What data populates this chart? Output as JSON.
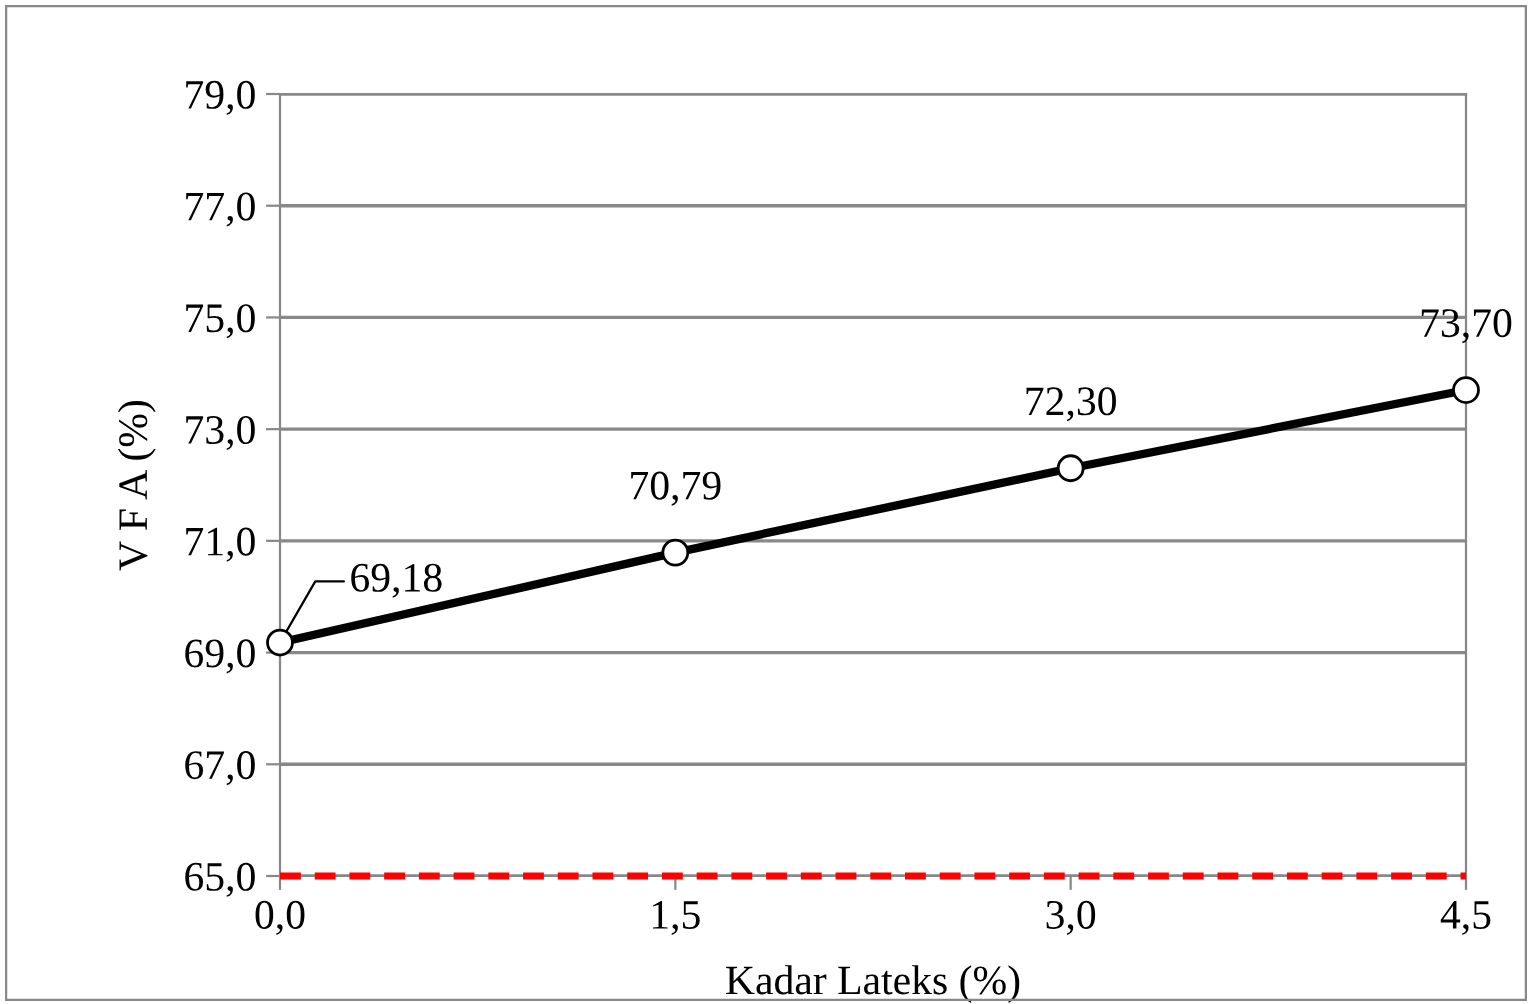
{
  "chart_data": {
    "type": "line",
    "xlabel": "Kadar Lateks (%)",
    "ylabel": "V F A (%)",
    "x": [
      0.0,
      1.5,
      3.0,
      4.5
    ],
    "series": [
      {
        "color": "#000000",
        "values": [
          69.18,
          70.79,
          72.3,
          73.7
        ],
        "value_labels": [
          "69,18",
          "70,79",
          "72,30",
          "73,70"
        ]
      }
    ],
    "xlim": [
      0,
      4.5
    ],
    "xticks": [
      {
        "value": 0,
        "label": "0,0"
      },
      {
        "value": 1.5,
        "label": "1,5"
      },
      {
        "value": 3.0,
        "label": "3,0"
      },
      {
        "value": 4.5,
        "label": "4,5"
      }
    ],
    "ylim": [
      65,
      79
    ],
    "yticks": [
      {
        "value": 65,
        "label": "65,0"
      },
      {
        "value": 67,
        "label": "67,0"
      },
      {
        "value": 69,
        "label": "69,0"
      },
      {
        "value": 71,
        "label": "71,0"
      },
      {
        "value": 73,
        "label": "73,0"
      },
      {
        "value": 75,
        "label": "75,0"
      },
      {
        "value": 77,
        "label": "77,0"
      },
      {
        "value": 79,
        "label": "79,0"
      }
    ],
    "ref_lines": [
      {
        "axis": "y",
        "value": 65,
        "color": "#ff0000",
        "line_style": "dashed"
      }
    ],
    "grid": "y",
    "marker": "circle",
    "line_style": "solid",
    "legend": false
  }
}
